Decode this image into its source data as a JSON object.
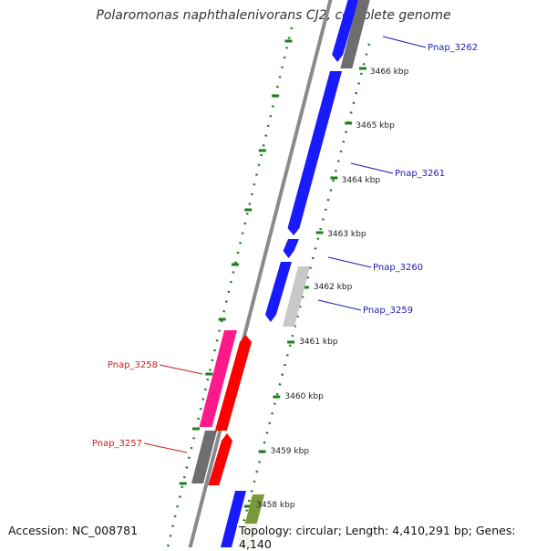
{
  "title": "Polaromonas naphthalenivorans CJ2, complete genome",
  "accession": "Accession: NC_008781",
  "topology": "Topology: circular; Length: 4,410,291 bp; Genes: 4,140",
  "colors": {
    "backbone": "#8a8a8a",
    "tick": "#1e7d1e",
    "gene_blue": "#1a1aff",
    "gene_red": "#ff0000",
    "gene_magenta": "#ff1a8c",
    "gene_darkgray": "#6e6e6e",
    "gene_lightgray": "#c8c8c8",
    "gene_olive": "#7a9a3a",
    "label_blue": "#1a1ab0",
    "label_red": "#c81e1e"
  },
  "scale_labels": [
    "3466 kbp",
    "3465 kbp",
    "3464 kbp",
    "3463 kbp",
    "3462 kbp",
    "3461 kbp",
    "3460 kbp",
    "3459 kbp",
    "3458 kbp"
  ],
  "gene_labels": [
    {
      "text": "Pnap_3262",
      "color": "blue"
    },
    {
      "text": "Pnap_3261",
      "color": "blue"
    },
    {
      "text": "Pnap_3260",
      "color": "blue"
    },
    {
      "text": "Pnap_3259",
      "color": "blue"
    },
    {
      "text": "Pnap_3258",
      "color": "red"
    },
    {
      "text": "Pnap_3257",
      "color": "red"
    }
  ]
}
